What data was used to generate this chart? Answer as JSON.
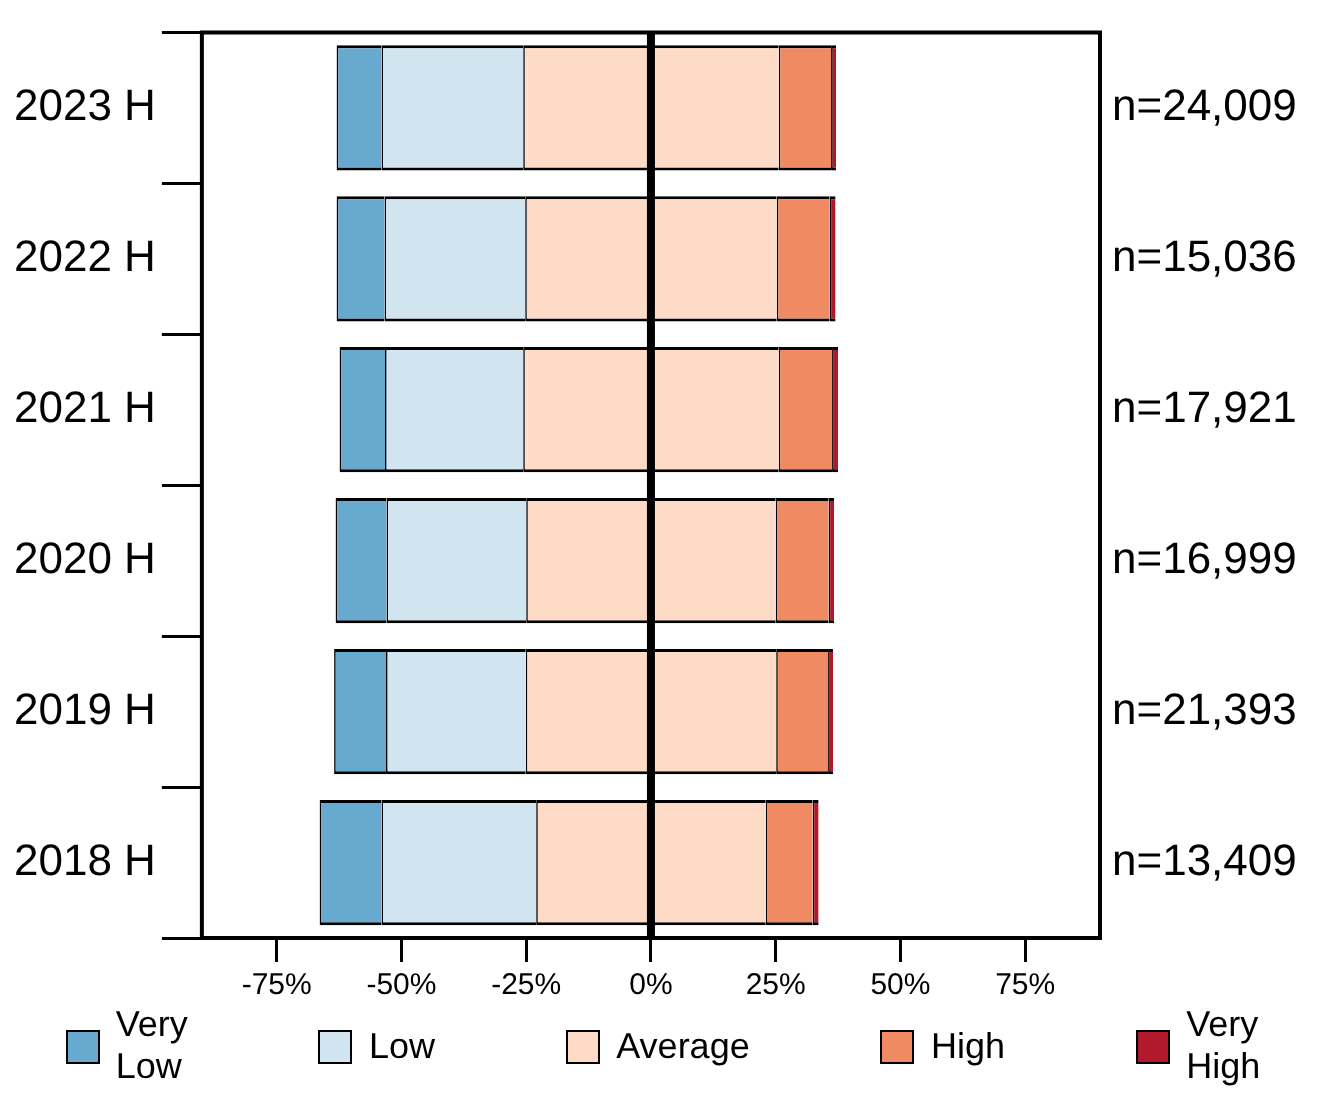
{
  "chart_data": {
    "type": "bar",
    "orientation": "horizontal",
    "categories": [
      "2023 H",
      "2022 H",
      "2021 H",
      "2020 H",
      "2019 H",
      "2018 H"
    ],
    "series": [
      {
        "name": "Very Low",
        "color": "#67a9cf",
        "values": [
          9,
          9.6,
          9.1,
          10.2,
          10.4,
          12.4
        ],
        "base": [
          -63,
          -63,
          -62.4,
          -63.2,
          -63.5,
          -66.4
        ]
      },
      {
        "name": "Low",
        "color": "#d1e5f0",
        "values": [
          28.4,
          28.2,
          27.7,
          28,
          28,
          31
        ],
        "base": [
          -54,
          -53.4,
          -53.3,
          -53,
          -53.1,
          -54
        ]
      },
      {
        "name": "Average",
        "color": "#fddbc7",
        "values": [
          51.2,
          50.4,
          51.2,
          50,
          50.2,
          46
        ],
        "base": [
          -25.6,
          -25.2,
          -25.6,
          -25,
          -25.1,
          -23
        ]
      },
      {
        "name": "High",
        "color": "#ef8a62",
        "values": [
          10.5,
          10.6,
          10.7,
          10.6,
          10.4,
          9.4
        ],
        "base": [
          25.6,
          25.2,
          25.6,
          25,
          25.1,
          23
        ]
      },
      {
        "name": "Very High",
        "color": "#b2182b",
        "values": [
          1,
          1.2,
          1.2,
          1.1,
          1,
          1.2
        ],
        "base": [
          36.1,
          35.8,
          36.3,
          35.6,
          35.5,
          32.4
        ]
      }
    ],
    "xlim": [
      -90,
      90
    ],
    "xticks": [
      {
        "value": -75,
        "label": "-75%"
      },
      {
        "value": -50,
        "label": "-50%"
      },
      {
        "value": -25,
        "label": "-25%"
      },
      {
        "value": 0,
        "label": "0%"
      },
      {
        "value": 25,
        "label": "25%"
      },
      {
        "value": 50,
        "label": "50%"
      },
      {
        "value": 75,
        "label": "75%"
      }
    ],
    "ref_lines": [
      {
        "axis": "x",
        "value": 0,
        "color": "#000000"
      }
    ],
    "annotations": [
      "n=24,009",
      "n=15,036",
      "n=17,921",
      "n=16,999",
      "n=21,393",
      "n=13,409"
    ],
    "grid": false,
    "legend": "bottom"
  }
}
